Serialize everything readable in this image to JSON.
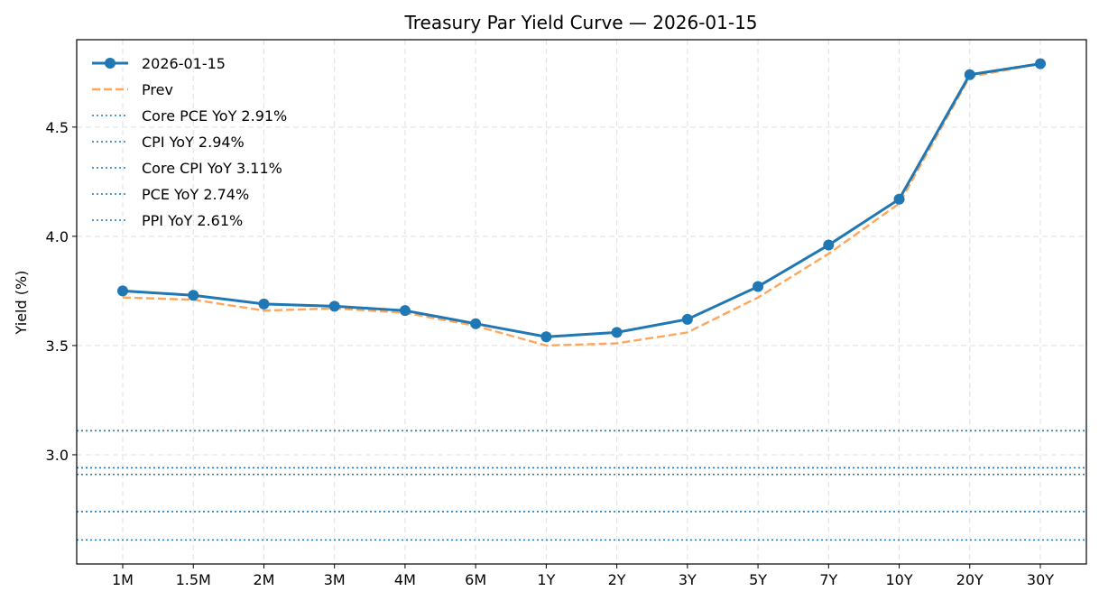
{
  "chart_data": {
    "type": "line",
    "title": "Treasury Par Yield Curve — 2026-01-15",
    "xlabel": "",
    "ylabel": "Yield (%)",
    "categories": [
      "1M",
      "1.5M",
      "2M",
      "3M",
      "4M",
      "6M",
      "1Y",
      "2Y",
      "3Y",
      "5Y",
      "7Y",
      "10Y",
      "20Y",
      "30Y"
    ],
    "ylim": [
      2.5,
      4.9
    ],
    "yticks": [
      "3.0",
      "3.5",
      "4.0",
      "4.5"
    ],
    "grid": true,
    "legend_placement": "top-left",
    "series": [
      {
        "name": "2026-01-15",
        "color": "#1f77b4",
        "style": "solid-markers",
        "values": [
          3.75,
          3.73,
          3.69,
          3.68,
          3.66,
          3.6,
          3.54,
          3.56,
          3.62,
          3.77,
          3.96,
          4.17,
          4.74,
          4.79
        ]
      },
      {
        "name": "Prev",
        "color": "#ffa65c",
        "style": "dashed",
        "values": [
          3.72,
          3.71,
          3.66,
          3.67,
          3.65,
          3.59,
          3.5,
          3.51,
          3.56,
          3.72,
          3.92,
          4.15,
          4.73,
          4.79
        ]
      }
    ],
    "hlines": [
      {
        "name": "Core PCE YoY 2.91%",
        "value": 2.91,
        "color": "#1f77b4"
      },
      {
        "name": "CPI YoY 2.94%",
        "value": 2.94,
        "color": "#1f77b4"
      },
      {
        "name": "Core CPI YoY 3.11%",
        "value": 3.11,
        "color": "#1f77b4"
      },
      {
        "name": "PCE YoY 2.74%",
        "value": 2.74,
        "color": "#1f77b4"
      },
      {
        "name": "PPI YoY 2.61%",
        "value": 2.61,
        "color": "#1f77b4"
      }
    ]
  }
}
